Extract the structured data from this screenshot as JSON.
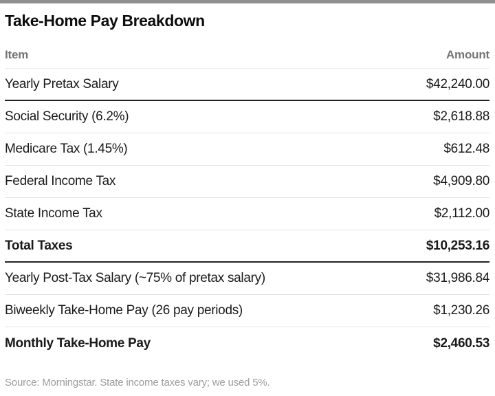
{
  "page": {
    "title": "Take-Home Pay Breakdown",
    "source_note": "Source: Morningstar. State income taxes vary; we used 5%."
  },
  "table": {
    "headers": {
      "item": "Item",
      "amount": "Amount"
    },
    "rows": [
      {
        "item": "Yearly Pretax Salary",
        "amount": "$42,240.00"
      },
      {
        "item": "Social Security (6.2%)",
        "amount": "$2,618.88"
      },
      {
        "item": "Medicare Tax (1.45%)",
        "amount": "$612.48"
      },
      {
        "item": "Federal Income Tax",
        "amount": "$4,909.80"
      },
      {
        "item": "State Income Tax",
        "amount": "$2,112.00"
      },
      {
        "item": "Total Taxes",
        "amount": "$10,253.16"
      },
      {
        "item": "Yearly Post-Tax Salary (~75% of pretax salary)",
        "amount": "$31,986.84"
      },
      {
        "item": "Biweekly Take-Home Pay (26 pay periods)",
        "amount": "$1,230.26"
      },
      {
        "item": "Monthly Take-Home Pay",
        "amount": "$2,460.53"
      }
    ]
  },
  "chart_data": {
    "type": "table",
    "title": "Take-Home Pay Breakdown",
    "columns": [
      "Item",
      "Amount"
    ],
    "rows": [
      [
        "Yearly Pretax Salary",
        42240.0
      ],
      [
        "Social Security (6.2%)",
        2618.88
      ],
      [
        "Medicare Tax (1.45%)",
        612.48
      ],
      [
        "Federal Income Tax",
        4909.8
      ],
      [
        "State Income Tax",
        2112.0
      ],
      [
        "Total Taxes",
        10253.16
      ],
      [
        "Yearly Post-Tax Salary (~75% of pretax salary)",
        31986.84
      ],
      [
        "Biweekly Take-Home Pay (26 pay periods)",
        1230.26
      ],
      [
        "Monthly Take-Home Pay",
        2460.53
      ]
    ],
    "emphasized_rows": [
      "Total Taxes",
      "Monthly Take-Home Pay"
    ],
    "source": "Source: Morningstar. State income taxes vary; we used 5%."
  },
  "colors": {
    "top_bar": "#8f8f8f",
    "header_text": "#757575",
    "body_text": "#1a1a1a",
    "separator_light": "#e2e2e2",
    "separator_dark": "#222222",
    "footer_text": "#9c9c9c"
  }
}
